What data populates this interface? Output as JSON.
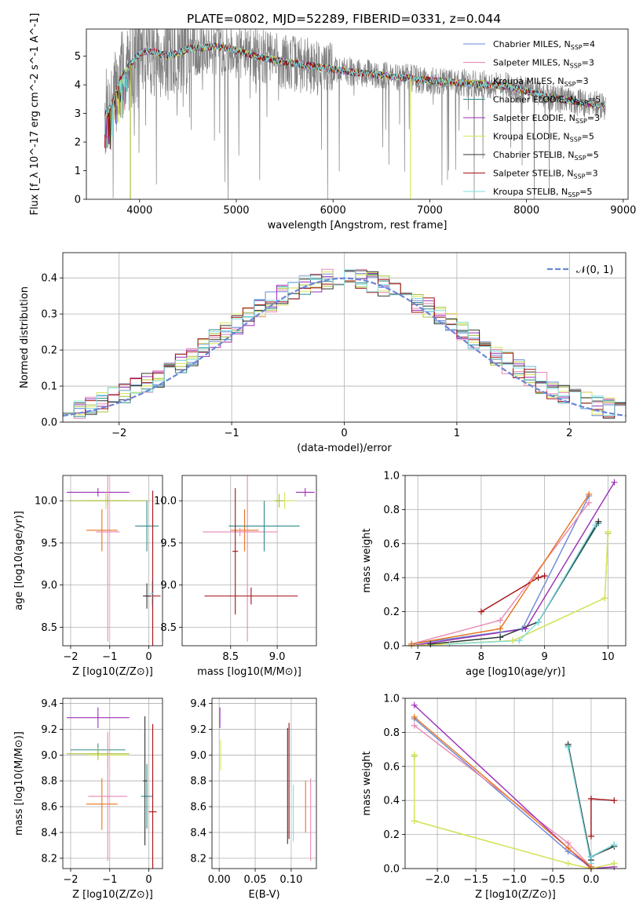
{
  "title": "PLATE=0802, MJD=52289, FIBERID=0331, z=0.044",
  "colors": {
    "data": "#7f7f7f",
    "models": [
      "#6b87d6",
      "#e887b3",
      "#a7c23c",
      "#2f8a8a",
      "#9b2fb5",
      "#d9e55a",
      "#333333",
      "#a40f12",
      "#7fdde0"
    ],
    "extra_orange": "#e8731c",
    "gaussian": "#6b87d6"
  },
  "chart_data": [
    {
      "id": "spectrum",
      "type": "line",
      "xlabel": "wavelength [Angstrom, rest frame]",
      "ylabel": "Flux [f_λ 10^-17 erg cm^-2 s^-1 A^-1]",
      "xlim": [
        3450,
        9050
      ],
      "ylim": [
        0,
        5.95
      ],
      "xticks": [
        "4000",
        "5000",
        "6000",
        "7000",
        "8000",
        "9000"
      ],
      "yticks": [
        "0",
        "1",
        "2",
        "3",
        "4",
        "5"
      ],
      "legend": {
        "placement": "top-right",
        "entries": [
          "Chabrier MILES, N_SSP=4",
          "Salpeter MILES, N_SSP=3",
          "Kroupa MILES, N_SSP=3",
          "Chabrier ELODIE, N_SSP=5",
          "Salpeter ELODIE, N_SSP=3",
          "Kroupa ELODIE, N_SSP=5",
          "Chabrier STELIB, N_SSP=5",
          "Salpeter STELIB, N_SSP=3",
          "Kroupa STELIB, N_SSP=5"
        ]
      },
      "continuum": [
        [
          3640,
          3.0
        ],
        [
          3700,
          3.2
        ],
        [
          3800,
          4.2
        ],
        [
          3900,
          4.7
        ],
        [
          4000,
          5.1
        ],
        [
          4100,
          5.2
        ],
        [
          4300,
          5.0
        ],
        [
          4500,
          5.25
        ],
        [
          4800,
          5.35
        ],
        [
          5000,
          5.2
        ],
        [
          5200,
          5.0
        ],
        [
          5500,
          4.8
        ],
        [
          5800,
          4.65
        ],
        [
          6200,
          4.45
        ],
        [
          6600,
          4.3
        ],
        [
          7000,
          4.15
        ],
        [
          7400,
          4.05
        ],
        [
          7800,
          3.95
        ],
        [
          8200,
          3.6
        ],
        [
          8600,
          3.35
        ],
        [
          8820,
          3.25
        ]
      ]
    },
    {
      "id": "residuals",
      "type": "histogram",
      "xlabel": "(data-model)/error",
      "ylabel": "Normed distribution",
      "xlim": [
        -2.5,
        2.5
      ],
      "ylim": [
        0,
        0.47
      ],
      "grid": true,
      "xticks": [
        "−2",
        "−1",
        "0",
        "1",
        "2"
      ],
      "yticks": [
        "0.0",
        "0.1",
        "0.2",
        "0.3",
        "0.4"
      ],
      "legend": {
        "placement": "top-right",
        "entries": [
          "𝒩(0, 1)"
        ]
      },
      "bin_width": 0.1
    },
    {
      "id": "age_vs_Z",
      "type": "scatter",
      "xlabel": "Z [log10(Z/Z⊙)]",
      "ylabel": "age  [log10(age/yr)]",
      "xlim": [
        -2.2,
        0.35
      ],
      "ylim": [
        8.28,
        10.3
      ],
      "grid": true,
      "xticks": [
        "−2",
        "−1",
        "0"
      ],
      "yticks": [
        "8.5",
        "9.0",
        "9.5",
        "10.0"
      ],
      "points": [
        {
          "x": -1.3,
          "y": 10.1,
          "xerr": 0.8,
          "yerr": 0.05,
          "c": 4
        },
        {
          "x": -1.1,
          "y": 10.0,
          "xerr": 0.5,
          "yerr": 0.1,
          "c": 5
        },
        {
          "x": -1.05,
          "y": 10.0,
          "xerr": 1.0,
          "yerr": 0.05,
          "c": 2
        },
        {
          "x": -1.2,
          "y": 9.65,
          "xerr": 0.4,
          "yerr": 0.25,
          "c": 9
        },
        {
          "x": -1.05,
          "y": 9.63,
          "xerr": 0.3,
          "yerr": 1.3,
          "c": 1
        },
        {
          "x": -0.05,
          "y": 9.7,
          "xerr": 0.3,
          "yerr": 0.3,
          "c": 3
        },
        {
          "x": 0.1,
          "y": 8.87,
          "xerr": 0.2,
          "yerr": 1.25,
          "c": 7
        },
        {
          "x": -0.05,
          "y": 8.87,
          "xerr": 0.1,
          "yerr": 0.15,
          "c": 6
        },
        {
          "x": 0.08,
          "y": 8.9,
          "xerr": 0.05,
          "yerr": 0.15,
          "c": 8
        }
      ]
    },
    {
      "id": "age_vs_mass",
      "type": "scatter",
      "xlabel": "mass [log10(M/M⊙)]",
      "ylabel": "",
      "xlim": [
        7.98,
        9.42
      ],
      "ylim": [
        8.28,
        10.3
      ],
      "grid": true,
      "xticks": [
        "8.5",
        "9.0"
      ],
      "yticks": [
        "8.5",
        "9.0",
        "9.5",
        "10.0"
      ],
      "points": [
        {
          "x": 9.3,
          "y": 10.1,
          "xerr": 0.1,
          "yerr": 0.05,
          "c": 4
        },
        {
          "x": 9.08,
          "y": 10.0,
          "xerr": 0.12,
          "yerr": 0.1,
          "c": 5
        },
        {
          "x": 9.02,
          "y": 10.0,
          "xerr": 0.05,
          "yerr": 0.08,
          "c": 2
        },
        {
          "x": 8.65,
          "y": 9.65,
          "xerr": 0.15,
          "yerr": 0.25,
          "c": 9
        },
        {
          "x": 8.6,
          "y": 9.63,
          "xerr": 0.4,
          "yerr": 0.05,
          "c": 1
        },
        {
          "x": 8.68,
          "y": 9.63,
          "xerr": 0.05,
          "yerr": 1.3,
          "c": 1
        },
        {
          "x": 8.86,
          "y": 9.7,
          "xerr": 0.38,
          "yerr": 0.3,
          "c": 3
        },
        {
          "x": 8.72,
          "y": 8.87,
          "xerr": 0.5,
          "yerr": 0.1,
          "c": 7
        },
        {
          "x": 8.55,
          "y": 9.4,
          "xerr": 0.03,
          "yerr": 0.75,
          "c": 7
        }
      ]
    },
    {
      "id": "massweight_vs_age",
      "type": "line",
      "xlabel": "age  [log10(age/yr)]",
      "ylabel": "mass weight",
      "xlim": [
        6.8,
        10.28
      ],
      "ylim": [
        0,
        1.0
      ],
      "grid": true,
      "xticks": [
        "7",
        "8",
        "9",
        "10"
      ],
      "yticks": [
        "0.0",
        "0.2",
        "0.4",
        "0.6",
        "0.8",
        "1.0"
      ],
      "series": [
        {
          "c": 0,
          "points": [
            [
              6.9,
              0.01
            ],
            [
              8.3,
              0.08
            ],
            [
              8.65,
              0.1
            ],
            [
              9.7,
              0.88
            ]
          ]
        },
        {
          "c": 1,
          "points": [
            [
              6.9,
              0.01
            ],
            [
              8.3,
              0.15
            ],
            [
              9.7,
              0.84
            ]
          ]
        },
        {
          "c": 2,
          "points": [
            [
              6.9,
              0.0
            ],
            [
              8.5,
              0.03
            ],
            [
              9.95,
              0.28
            ],
            [
              10.0,
              0.66
            ]
          ]
        },
        {
          "c": 3,
          "points": [
            [
              7.2,
              0.01
            ],
            [
              8.3,
              0.05
            ],
            [
              8.9,
              0.14
            ],
            [
              9.85,
              0.72
            ]
          ]
        },
        {
          "c": 4,
          "points": [
            [
              6.9,
              0.0
            ],
            [
              8.7,
              0.1
            ],
            [
              10.1,
              0.96
            ]
          ]
        },
        {
          "c": 5,
          "points": [
            [
              6.9,
              0.0
            ],
            [
              8.5,
              0.03
            ],
            [
              9.95,
              0.28
            ],
            [
              10.0,
              0.67
            ]
          ]
        },
        {
          "c": 6,
          "points": [
            [
              7.2,
              0.01
            ],
            [
              8.3,
              0.05
            ],
            [
              8.9,
              0.14
            ],
            [
              9.85,
              0.73
            ]
          ]
        },
        {
          "c": 7,
          "points": [
            [
              8.0,
              0.2
            ],
            [
              8.9,
              0.4
            ],
            [
              9.0,
              0.41
            ]
          ]
        },
        {
          "c": 8,
          "points": [
            [
              7.5,
              0.01
            ],
            [
              8.6,
              0.03
            ],
            [
              8.9,
              0.14
            ],
            [
              9.8,
              0.71
            ]
          ]
        },
        {
          "c": 9,
          "points": [
            [
              6.9,
              0.01
            ],
            [
              8.3,
              0.1
            ],
            [
              9.7,
              0.89
            ]
          ]
        }
      ]
    },
    {
      "id": "mass_vs_Z",
      "type": "scatter",
      "xlabel": "Z [log10(Z/Z⊙)]",
      "ylabel": "mass [log10(M/M⊙)]",
      "xlim": [
        -2.2,
        0.35
      ],
      "ylim": [
        8.12,
        9.44
      ],
      "grid": true,
      "xticks": [
        "−2",
        "−1",
        "0"
      ],
      "yticks": [
        "8.2",
        "8.4",
        "8.6",
        "8.8",
        "9.0",
        "9.2",
        "9.4"
      ],
      "points": [
        {
          "x": -1.3,
          "y": 9.29,
          "xerr": 0.8,
          "yerr": 0.08,
          "c": 4
        },
        {
          "x": -1.3,
          "y": 9.04,
          "xerr": 0.7,
          "yerr": 0.05,
          "c": 3
        },
        {
          "x": -1.05,
          "y": 9.0,
          "xerr": 0.5,
          "yerr": 0.1,
          "c": 5
        },
        {
          "x": -1.3,
          "y": 9.01,
          "xerr": 0.8,
          "yerr": 0.05,
          "c": 2
        },
        {
          "x": -1.2,
          "y": 8.62,
          "xerr": 0.4,
          "yerr": 0.2,
          "c": 9
        },
        {
          "x": -1.05,
          "y": 8.68,
          "xerr": 0.5,
          "yerr": 0.5,
          "c": 1
        },
        {
          "x": -0.05,
          "y": 8.68,
          "xerr": 0.15,
          "yerr": 0.25,
          "c": 3
        },
        {
          "x": -0.1,
          "y": 8.8,
          "xerr": 0.05,
          "yerr": 0.5,
          "c": 6
        },
        {
          "x": 0.1,
          "y": 8.56,
          "xerr": 0.1,
          "yerr": 0.68,
          "c": 7
        }
      ]
    },
    {
      "id": "mass_vs_ebv",
      "type": "scatter",
      "xlabel": "E(B-V)",
      "ylabel": "",
      "xlim": [
        -0.01,
        0.135
      ],
      "ylim": [
        8.12,
        9.44
      ],
      "grid": true,
      "xticks": [
        "0.00",
        "0.05",
        "0.10"
      ],
      "yticks": [
        "8.2",
        "8.4",
        "8.6",
        "8.8",
        "9.0",
        "9.2",
        "9.4"
      ],
      "points": [
        {
          "x": 0.001,
          "y": 9.29,
          "xerr": 0,
          "yerr": 0.08,
          "c": 4
        },
        {
          "x": 0.002,
          "y": 9.0,
          "xerr": 0,
          "yerr": 0.12,
          "c": 5
        },
        {
          "x": 0.095,
          "y": 8.76,
          "xerr": 0,
          "yerr": 0.45,
          "c": 6
        },
        {
          "x": 0.097,
          "y": 8.8,
          "xerr": 0,
          "yerr": 0.45,
          "c": 7
        },
        {
          "x": 0.103,
          "y": 8.55,
          "xerr": 0,
          "yerr": 0.22,
          "c": 8
        },
        {
          "x": 0.12,
          "y": 8.6,
          "xerr": 0,
          "yerr": 0.2,
          "c": 9
        },
        {
          "x": 0.127,
          "y": 8.5,
          "xerr": 0,
          "yerr": 0.32,
          "c": 1
        }
      ]
    },
    {
      "id": "massweight_vs_Z",
      "type": "line",
      "xlabel": "Z [log10(Z/Z⊙)]",
      "ylabel": "mass weight",
      "xlim": [
        -2.42,
        0.45
      ],
      "ylim": [
        0,
        1.0
      ],
      "grid": true,
      "xticks": [
        "−2.0",
        "−1.5",
        "−1.0",
        "−0.5",
        "0.0"
      ],
      "yticks": [
        "0.0",
        "0.2",
        "0.4",
        "0.6",
        "0.8",
        "1.0"
      ],
      "series": [
        {
          "c": 0,
          "points": [
            [
              -2.3,
              0.88
            ],
            [
              -0.3,
              0.1
            ],
            [
              0.0,
              0.01
            ]
          ]
        },
        {
          "c": 1,
          "points": [
            [
              -2.3,
              0.84
            ],
            [
              -0.3,
              0.15
            ],
            [
              0.0,
              0.01
            ]
          ]
        },
        {
          "c": 2,
          "points": [
            [
              -2.3,
              0.66
            ],
            [
              -2.3,
              0.28
            ],
            [
              -0.3,
              0.03
            ],
            [
              0.0,
              0.0
            ],
            [
              0.3,
              0.03
            ]
          ]
        },
        {
          "c": 3,
          "points": [
            [
              -0.3,
              0.72
            ],
            [
              0.0,
              0.05
            ],
            [
              0.0,
              0.07
            ],
            [
              0.3,
              0.14
            ]
          ]
        },
        {
          "c": 4,
          "points": [
            [
              -2.3,
              0.96
            ],
            [
              -0.3,
              0.12
            ],
            [
              0.0,
              0.0
            ],
            [
              0.3,
              0.01
            ]
          ]
        },
        {
          "c": 5,
          "points": [
            [
              -2.3,
              0.67
            ],
            [
              -2.3,
              0.28
            ],
            [
              -0.3,
              0.03
            ],
            [
              0.0,
              0.0
            ],
            [
              0.3,
              0.03
            ]
          ]
        },
        {
          "c": 6,
          "points": [
            [
              -0.3,
              0.73
            ],
            [
              0.0,
              0.05
            ],
            [
              0.0,
              0.07
            ],
            [
              0.3,
              0.13
            ]
          ]
        },
        {
          "c": 7,
          "points": [
            [
              0.0,
              0.19
            ],
            [
              0.0,
              0.41
            ],
            [
              0.3,
              0.4
            ]
          ]
        },
        {
          "c": 8,
          "points": [
            [
              -0.3,
              0.71
            ],
            [
              0.0,
              0.03
            ],
            [
              0.0,
              0.07
            ],
            [
              0.3,
              0.14
            ]
          ]
        },
        {
          "c": 9,
          "points": [
            [
              -2.3,
              0.89
            ],
            [
              -0.3,
              0.12
            ],
            [
              0.0,
              0.01
            ]
          ]
        }
      ]
    }
  ]
}
